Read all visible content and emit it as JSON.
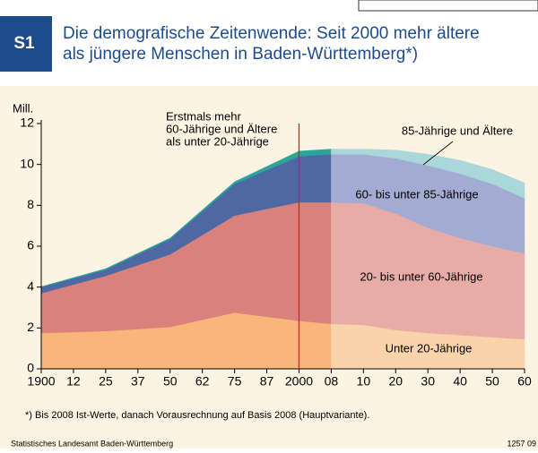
{
  "chart_data": {
    "type": "stacked_area",
    "badge": "S1",
    "title": [
      "Die demografische Zeitenwende: Seit 2000 mehr ältere",
      "als jüngere Menschen in Baden-Württemberg*)"
    ],
    "y_label": "Mill.",
    "x": [
      1900,
      1925,
      1950,
      1975,
      2000,
      2008,
      2010,
      2020,
      2030,
      2040,
      2050,
      2060
    ],
    "xlim": [
      1900,
      2060
    ],
    "xticks": [
      {
        "value": 1900,
        "label": "1900"
      },
      {
        "value": 1912,
        "label": "12"
      },
      {
        "value": 1925,
        "label": "25"
      },
      {
        "value": 1937,
        "label": "37"
      },
      {
        "value": 1950,
        "label": "50"
      },
      {
        "value": 1962,
        "label": "62"
      },
      {
        "value": 1975,
        "label": "75"
      },
      {
        "value": 1987,
        "label": "87"
      },
      2000,
      {
        "value": 2008,
        "label": "08"
      },
      {
        "value": 2010,
        "label": "10"
      },
      {
        "value": 2020,
        "label": "20"
      },
      {
        "value": 2030,
        "label": "30"
      },
      {
        "value": 2040,
        "label": "40"
      },
      {
        "value": 2050,
        "label": "50"
      },
      {
        "value": 2060,
        "label": "60"
      }
    ],
    "ylim": [
      0,
      12
    ],
    "yticks": [
      0,
      2,
      4,
      6,
      8,
      10,
      12
    ],
    "forecast_from": 2008,
    "series": [
      {
        "name": "Unter 20-Jährige",
        "color": "#f9b67a",
        "forecast_color": "#fbd3ab",
        "values": [
          1.75,
          1.85,
          2.05,
          2.75,
          2.35,
          2.2,
          2.15,
          1.9,
          1.75,
          1.65,
          1.55,
          1.45
        ]
      },
      {
        "name": "20- bis unter 60-Jährige",
        "color": "#d9817b",
        "forecast_color": "#e8aca7",
        "values": [
          1.95,
          2.7,
          3.55,
          4.75,
          5.8,
          5.95,
          5.95,
          5.7,
          5.15,
          4.75,
          4.45,
          4.2
        ]
      },
      {
        "name": "60- bis unter 85-Jährige",
        "color": "#4d68a3",
        "forecast_color": "#a3abd2",
        "values": [
          0.3,
          0.3,
          0.75,
          1.55,
          2.25,
          2.35,
          2.4,
          2.7,
          3.05,
          3.15,
          3.05,
          2.7
        ]
      },
      {
        "name": "85-Jährige und Ältere",
        "color": "#2aa59a",
        "forecast_color": "#a9d7da",
        "values": [
          0.02,
          0.05,
          0.05,
          0.1,
          0.25,
          0.25,
          0.25,
          0.4,
          0.55,
          0.65,
          0.7,
          0.75
        ]
      }
    ],
    "marker_x": 2000,
    "annotation": [
      "Erstmals mehr",
      "60-Jährige und Ältere",
      "als unter 20-Jährige"
    ],
    "footnote": "*) Bis 2008 Ist-Werte, danach Vorausrechnung auf Basis 2008 (Hauptvariante).",
    "source": "Statistisches Landesamt Baden-Württemberg",
    "code": "1257 09"
  }
}
